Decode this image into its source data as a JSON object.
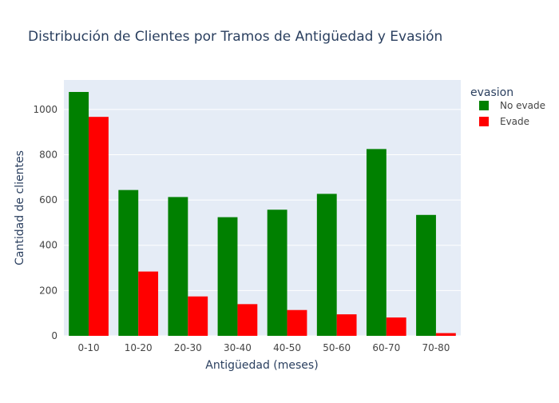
{
  "chart_data": {
    "type": "bar",
    "title": "Distribución de Clientes por Tramos de Antigüedad y Evasión",
    "xlabel": "Antigüedad (meses)",
    "ylabel": "Cantidad de clientes",
    "categories": [
      "0-10",
      "10-20",
      "20-30",
      "30-40",
      "40-50",
      "50-60",
      "60-70",
      "70-80"
    ],
    "series": [
      {
        "name": "No evade",
        "color": "#008000",
        "values": [
          1077,
          644,
          613,
          524,
          557,
          627,
          825,
          534
        ]
      },
      {
        "name": "Evade",
        "color": "#ff0000",
        "values": [
          967,
          284,
          174,
          140,
          114,
          95,
          81,
          12
        ]
      }
    ],
    "ylim": [
      0,
      1130
    ],
    "yticks": [
      0,
      200,
      400,
      600,
      800,
      1000
    ],
    "grid": true,
    "legend": {
      "title": "evasion",
      "placement": "top-right"
    },
    "colors": {
      "plot_background": "#e5ecf6",
      "grid": "#ffffff",
      "text": "#444444",
      "title": "#2a3f5f"
    }
  }
}
